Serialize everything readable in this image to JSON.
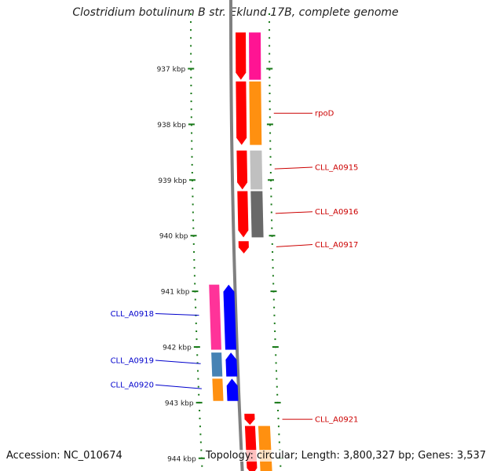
{
  "title": "Clostridium botulinum B str. Eklund 17B, complete genome",
  "accession_text": "Accession: NC_010674",
  "summary_text": "Topology: circular; Length: 3,800,327 bp; Genes: 3,537",
  "colors": {
    "backbone": "#808080",
    "tick": "#1a7a1a",
    "forward_label": "#cc0000",
    "reverse_label": "#0000cc"
  },
  "ticks": [
    {
      "label": "937 kbp",
      "kbp": 937
    },
    {
      "label": "938 kbp",
      "kbp": 938
    },
    {
      "label": "939 kbp",
      "kbp": 939
    },
    {
      "label": "940 kbp",
      "kbp": 940
    },
    {
      "label": "941 kbp",
      "kbp": 941
    },
    {
      "label": "942 kbp",
      "kbp": 942
    },
    {
      "label": "943 kbp",
      "kbp": 943
    },
    {
      "label": "944 kbp",
      "kbp": 944
    }
  ],
  "features": [
    {
      "track": "forward-cds",
      "start_kbp": 936.35,
      "end_kbp": 937.2,
      "color": "#ff0000",
      "arrow": true
    },
    {
      "track": "forward-gene",
      "start_kbp": 936.35,
      "end_kbp": 937.2,
      "color": "#ff1493",
      "arrow": false
    },
    {
      "track": "forward-cds",
      "start_kbp": 937.23,
      "end_kbp": 938.37,
      "color": "#ff0000",
      "arrow": true
    },
    {
      "track": "forward-gene",
      "start_kbp": 937.23,
      "end_kbp": 938.37,
      "color": "#ff9010",
      "arrow": false
    },
    {
      "track": "forward-cds",
      "start_kbp": 938.47,
      "end_kbp": 939.17,
      "color": "#ff0000",
      "arrow": true
    },
    {
      "track": "forward-gene",
      "start_kbp": 938.47,
      "end_kbp": 939.17,
      "color": "#c0c0c0",
      "arrow": false
    },
    {
      "track": "forward-cds",
      "start_kbp": 939.2,
      "end_kbp": 940.03,
      "color": "#ff0000",
      "arrow": true
    },
    {
      "track": "forward-gene",
      "start_kbp": 939.2,
      "end_kbp": 940.03,
      "color": "#696969",
      "arrow": false
    },
    {
      "track": "forward-cds",
      "start_kbp": 940.1,
      "end_kbp": 940.32,
      "color": "#ff0000",
      "arrow": true
    },
    {
      "track": "reverse-gene",
      "start_kbp": 940.88,
      "end_kbp": 942.05,
      "color": "#ff3399",
      "arrow": false
    },
    {
      "track": "reverse-cds",
      "start_kbp": 940.88,
      "end_kbp": 942.05,
      "color": "#0000ff",
      "arrow": true
    },
    {
      "track": "reverse-gene",
      "start_kbp": 942.1,
      "end_kbp": 942.53,
      "color": "#4682b4",
      "arrow": false
    },
    {
      "track": "reverse-cds",
      "start_kbp": 942.1,
      "end_kbp": 942.53,
      "color": "#0000ff",
      "arrow": true
    },
    {
      "track": "reverse-gene",
      "start_kbp": 942.57,
      "end_kbp": 942.97,
      "color": "#ff9010",
      "arrow": false
    },
    {
      "track": "reverse-cds",
      "start_kbp": 942.57,
      "end_kbp": 942.97,
      "color": "#0000ff",
      "arrow": true
    },
    {
      "track": "forward-cds",
      "start_kbp": 943.2,
      "end_kbp": 943.4,
      "color": "#ff0000",
      "arrow": true
    },
    {
      "track": "forward-cds",
      "start_kbp": 943.42,
      "end_kbp": 944.3,
      "color": "#ff0000",
      "arrow": true
    },
    {
      "track": "forward-gene",
      "start_kbp": 943.42,
      "end_kbp": 944.3,
      "color": "#ff9010",
      "arrow": false
    }
  ],
  "labels": [
    {
      "text": "rpoD",
      "strand": "forward",
      "kbp": 937.8,
      "label_kbp": 937.8
    },
    {
      "text": "CLL_A0915",
      "strand": "forward",
      "kbp": 938.8,
      "label_kbp": 938.77
    },
    {
      "text": "CLL_A0916",
      "strand": "forward",
      "kbp": 939.6,
      "label_kbp": 939.57
    },
    {
      "text": "CLL_A0917",
      "strand": "forward",
      "kbp": 940.2,
      "label_kbp": 940.16
    },
    {
      "text": "CLL_A0918",
      "strand": "reverse",
      "kbp": 941.43,
      "label_kbp": 941.4
    },
    {
      "text": "CLL_A0919",
      "strand": "reverse",
      "kbp": 942.3,
      "label_kbp": 942.24
    },
    {
      "text": "CLL_A0920",
      "strand": "reverse",
      "kbp": 942.75,
      "label_kbp": 942.68
    },
    {
      "text": "CLL_A0921",
      "strand": "forward",
      "kbp": 943.3,
      "label_kbp": 943.3
    }
  ]
}
